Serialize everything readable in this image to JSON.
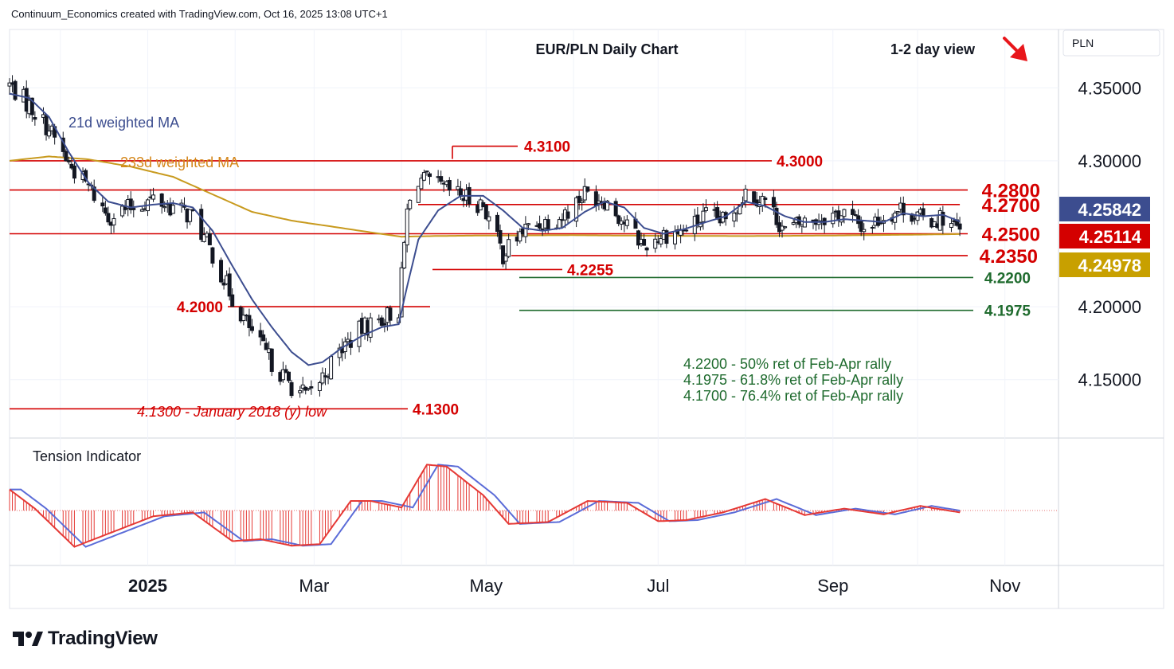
{
  "header": {
    "credit": "Continuum_Economics created with TradingView.com, Oct 16, 2025 13:08 UTC+1"
  },
  "footer": {
    "brand": "TradingView"
  },
  "chart_data": {
    "type": "candlestick",
    "title": "EUR/PLN Daily Chart",
    "view": "1-2 day view",
    "view_direction": "down",
    "currency_label": "PLN",
    "price_axis": {
      "range": [
        4.11,
        4.39
      ],
      "ticks": [
        "4.35000",
        "4.30000",
        "4.20000",
        "4.15000"
      ],
      "ticks_values": [
        4.35,
        4.3,
        4.2,
        4.15
      ]
    },
    "time_axis": {
      "labels": [
        "2025",
        "Mar",
        "May",
        "Jul",
        "Sep",
        "Nov"
      ],
      "range": [
        "2024-11-13",
        "2025-11-20"
      ]
    },
    "price_badges": [
      {
        "label": "4.25842",
        "value": 4.25842,
        "color": "#3c4d8f",
        "series": "21d weighted MA"
      },
      {
        "label": "4.25114",
        "value": 4.25114,
        "color": "#d40000",
        "series": "Last price"
      },
      {
        "label": "4.24978",
        "value": 4.24978,
        "color": "#c8a000",
        "series": "233d weighted MA"
      }
    ],
    "series_labels": [
      {
        "name": "21d weighted MA",
        "color": "#3c4d8f"
      },
      {
        "name": "233d weighted MA",
        "color": "#d4861a"
      }
    ],
    "levels": [
      {
        "label": "4.3100",
        "value": 4.31,
        "color": "#d40000",
        "kind": "resistance",
        "start": "2025-04-16",
        "end": "2025-04-16"
      },
      {
        "label": "4.3000",
        "value": 4.3,
        "color": "#d40000",
        "kind": "resistance",
        "start": "2024-11-13",
        "end": "2025-08-08"
      },
      {
        "label": "4.2800",
        "value": 4.28,
        "color": "#d40000",
        "kind": "resistance",
        "start": "2024-11-13",
        "end": "2025-10-16"
      },
      {
        "label": "4.2700",
        "value": 4.27,
        "color": "#d40000",
        "kind": "resistance",
        "start": "2025-04-01",
        "end": "2025-10-16"
      },
      {
        "label": "4.2500",
        "value": 4.25,
        "color": "#d40000",
        "kind": "support",
        "start": "2024-11-13",
        "end": "2025-10-16"
      },
      {
        "label": "4.2350",
        "value": 4.235,
        "color": "#d40000",
        "kind": "support",
        "start": "2025-05-07",
        "end": "2025-10-16"
      },
      {
        "label": "4.2255",
        "value": 4.2255,
        "color": "#d40000",
        "kind": "support",
        "start": "2025-04-07",
        "end": "2025-05-19"
      },
      {
        "label": "4.2200",
        "value": 4.22,
        "color": "#1f6b2e",
        "kind": "retracement",
        "start": "2025-05-07",
        "end": "2025-10-16"
      },
      {
        "label": "4.1975",
        "value": 4.1975,
        "color": "#1f6b2e",
        "kind": "retracement",
        "start": "2025-05-07",
        "end": "2025-10-16"
      },
      {
        "label": "4.2000",
        "value": 4.2,
        "color": "#d40000",
        "kind": "support",
        "start": "2025-01-27",
        "end": "2025-04-01"
      },
      {
        "label": "4.1300",
        "value": 4.13,
        "color": "#d40000",
        "kind": "support",
        "start": "2024-11-13",
        "end": "2025-03-14"
      }
    ],
    "annotations": [
      {
        "text": "4.1300 - January 2018 (y) low",
        "color": "#d40000",
        "italic": true
      },
      {
        "text": "4.2200 - 50% ret of Feb-Apr rally",
        "color": "#1f6b2e"
      },
      {
        "text": "4.1975 - 61.8% ret of Feb-Apr rally",
        "color": "#1f6b2e"
      },
      {
        "text": "4.1700 - 76.4% ret of Feb-Apr rally",
        "color": "#1f6b2e"
      }
    ],
    "price_series": {
      "anchors_dates": [
        "2024-11-13",
        "2024-11-20",
        "2024-11-27",
        "2024-12-04",
        "2024-12-11",
        "2024-12-18",
        "2024-12-26",
        "2025-01-03",
        "2025-01-10",
        "2025-01-17",
        "2025-01-24",
        "2025-01-31",
        "2025-02-07",
        "2025-02-14",
        "2025-02-21",
        "2025-02-27",
        "2025-03-04",
        "2025-03-11",
        "2025-03-18",
        "2025-03-25",
        "2025-03-31",
        "2025-04-03",
        "2025-04-07",
        "2025-04-14",
        "2025-04-22",
        "2025-04-30",
        "2025-05-07",
        "2025-05-14",
        "2025-05-21",
        "2025-05-28",
        "2025-06-05",
        "2025-06-12",
        "2025-06-19",
        "2025-06-26",
        "2025-07-03",
        "2025-07-10",
        "2025-07-18",
        "2025-07-25",
        "2025-08-01",
        "2025-08-08",
        "2025-08-15",
        "2025-08-22",
        "2025-08-29",
        "2025-09-05",
        "2025-09-12",
        "2025-09-19",
        "2025-09-26",
        "2025-10-03",
        "2025-10-10",
        "2025-10-16"
      ],
      "anchors_close": [
        4.352,
        4.338,
        4.322,
        4.298,
        4.282,
        4.262,
        4.268,
        4.274,
        4.268,
        4.262,
        4.236,
        4.206,
        4.182,
        4.162,
        4.146,
        4.138,
        4.152,
        4.172,
        4.185,
        4.192,
        4.198,
        4.265,
        4.288,
        4.282,
        4.276,
        4.27,
        4.236,
        4.252,
        4.258,
        4.262,
        4.278,
        4.274,
        4.258,
        4.242,
        4.25,
        4.252,
        4.262,
        4.258,
        4.279,
        4.273,
        4.252,
        4.258,
        4.262,
        4.264,
        4.254,
        4.262,
        4.268,
        4.259,
        4.261,
        4.2511
      ]
    },
    "ma21_series": {
      "anchors_dates": [
        "2024-11-13",
        "2024-11-20",
        "2024-11-27",
        "2024-12-04",
        "2024-12-11",
        "2024-12-18",
        "2024-12-26",
        "2025-01-03",
        "2025-01-10",
        "2025-01-17",
        "2025-01-24",
        "2025-01-31",
        "2025-02-07",
        "2025-02-14",
        "2025-02-21",
        "2025-02-27",
        "2025-03-04",
        "2025-03-11",
        "2025-03-18",
        "2025-03-25",
        "2025-03-31",
        "2025-04-03",
        "2025-04-07",
        "2025-04-14",
        "2025-04-22",
        "2025-04-30",
        "2025-05-07",
        "2025-05-14",
        "2025-05-21",
        "2025-05-28",
        "2025-06-05",
        "2025-06-12",
        "2025-06-19",
        "2025-06-26",
        "2025-07-03",
        "2025-07-10",
        "2025-07-18",
        "2025-07-25",
        "2025-08-01",
        "2025-08-08",
        "2025-08-15",
        "2025-08-22",
        "2025-08-29",
        "2025-09-05",
        "2025-09-12",
        "2025-09-19",
        "2025-09-26",
        "2025-10-03",
        "2025-10-10",
        "2025-10-16"
      ],
      "anchors_value": [
        4.346,
        4.343,
        4.33,
        4.306,
        4.285,
        4.272,
        4.268,
        4.27,
        4.271,
        4.268,
        4.252,
        4.228,
        4.205,
        4.186,
        4.169,
        4.16,
        4.162,
        4.172,
        4.18,
        4.186,
        4.188,
        4.214,
        4.246,
        4.266,
        4.276,
        4.276,
        4.266,
        4.254,
        4.252,
        4.254,
        4.265,
        4.272,
        4.268,
        4.254,
        4.25,
        4.253,
        4.258,
        4.262,
        4.272,
        4.269,
        4.262,
        4.258,
        4.258,
        4.26,
        4.259,
        4.258,
        4.264,
        4.262,
        4.263,
        4.2584
      ]
    },
    "ma233_series": {
      "anchors_dates": [
        "2024-11-13",
        "2024-11-27",
        "2024-12-11",
        "2024-12-26",
        "2025-01-10",
        "2025-01-24",
        "2025-02-07",
        "2025-02-21",
        "2025-03-07",
        "2025-03-21",
        "2025-04-01",
        "2025-04-14",
        "2025-05-01",
        "2025-06-01",
        "2025-07-01",
        "2025-08-01",
        "2025-09-01",
        "2025-10-01",
        "2025-10-16"
      ],
      "anchors_value": [
        4.3,
        4.303,
        4.301,
        4.296,
        4.289,
        4.277,
        4.265,
        4.259,
        4.255,
        4.251,
        4.248,
        4.2485,
        4.2488,
        4.249,
        4.2486,
        4.2484,
        4.2488,
        4.2494,
        4.2498
      ]
    },
    "tension_indicator": {
      "title": "Tension Indicator",
      "anchors_dates": [
        "2024-11-13",
        "2024-11-22",
        "2024-12-06",
        "2024-12-20",
        "2025-01-03",
        "2025-01-17",
        "2025-01-31",
        "2025-02-10",
        "2025-02-21",
        "2025-03-03",
        "2025-03-14",
        "2025-03-21",
        "2025-04-01",
        "2025-04-10",
        "2025-04-17",
        "2025-04-30",
        "2025-05-09",
        "2025-05-23",
        "2025-06-06",
        "2025-06-20",
        "2025-07-01",
        "2025-07-11",
        "2025-07-24",
        "2025-08-08",
        "2025-08-22",
        "2025-09-05",
        "2025-09-19",
        "2025-10-02",
        "2025-10-16"
      ],
      "anchors_value": [
        0.55,
        0.05,
        -0.95,
        -0.55,
        -0.15,
        -0.05,
        -0.8,
        -0.75,
        -0.92,
        -0.88,
        0.25,
        0.25,
        0.08,
        1.2,
        1.15,
        0.4,
        -0.35,
        -0.3,
        0.25,
        0.2,
        -0.28,
        -0.25,
        -0.05,
        0.3,
        -0.12,
        0.05,
        -0.1,
        0.12,
        -0.05
      ]
    }
  }
}
